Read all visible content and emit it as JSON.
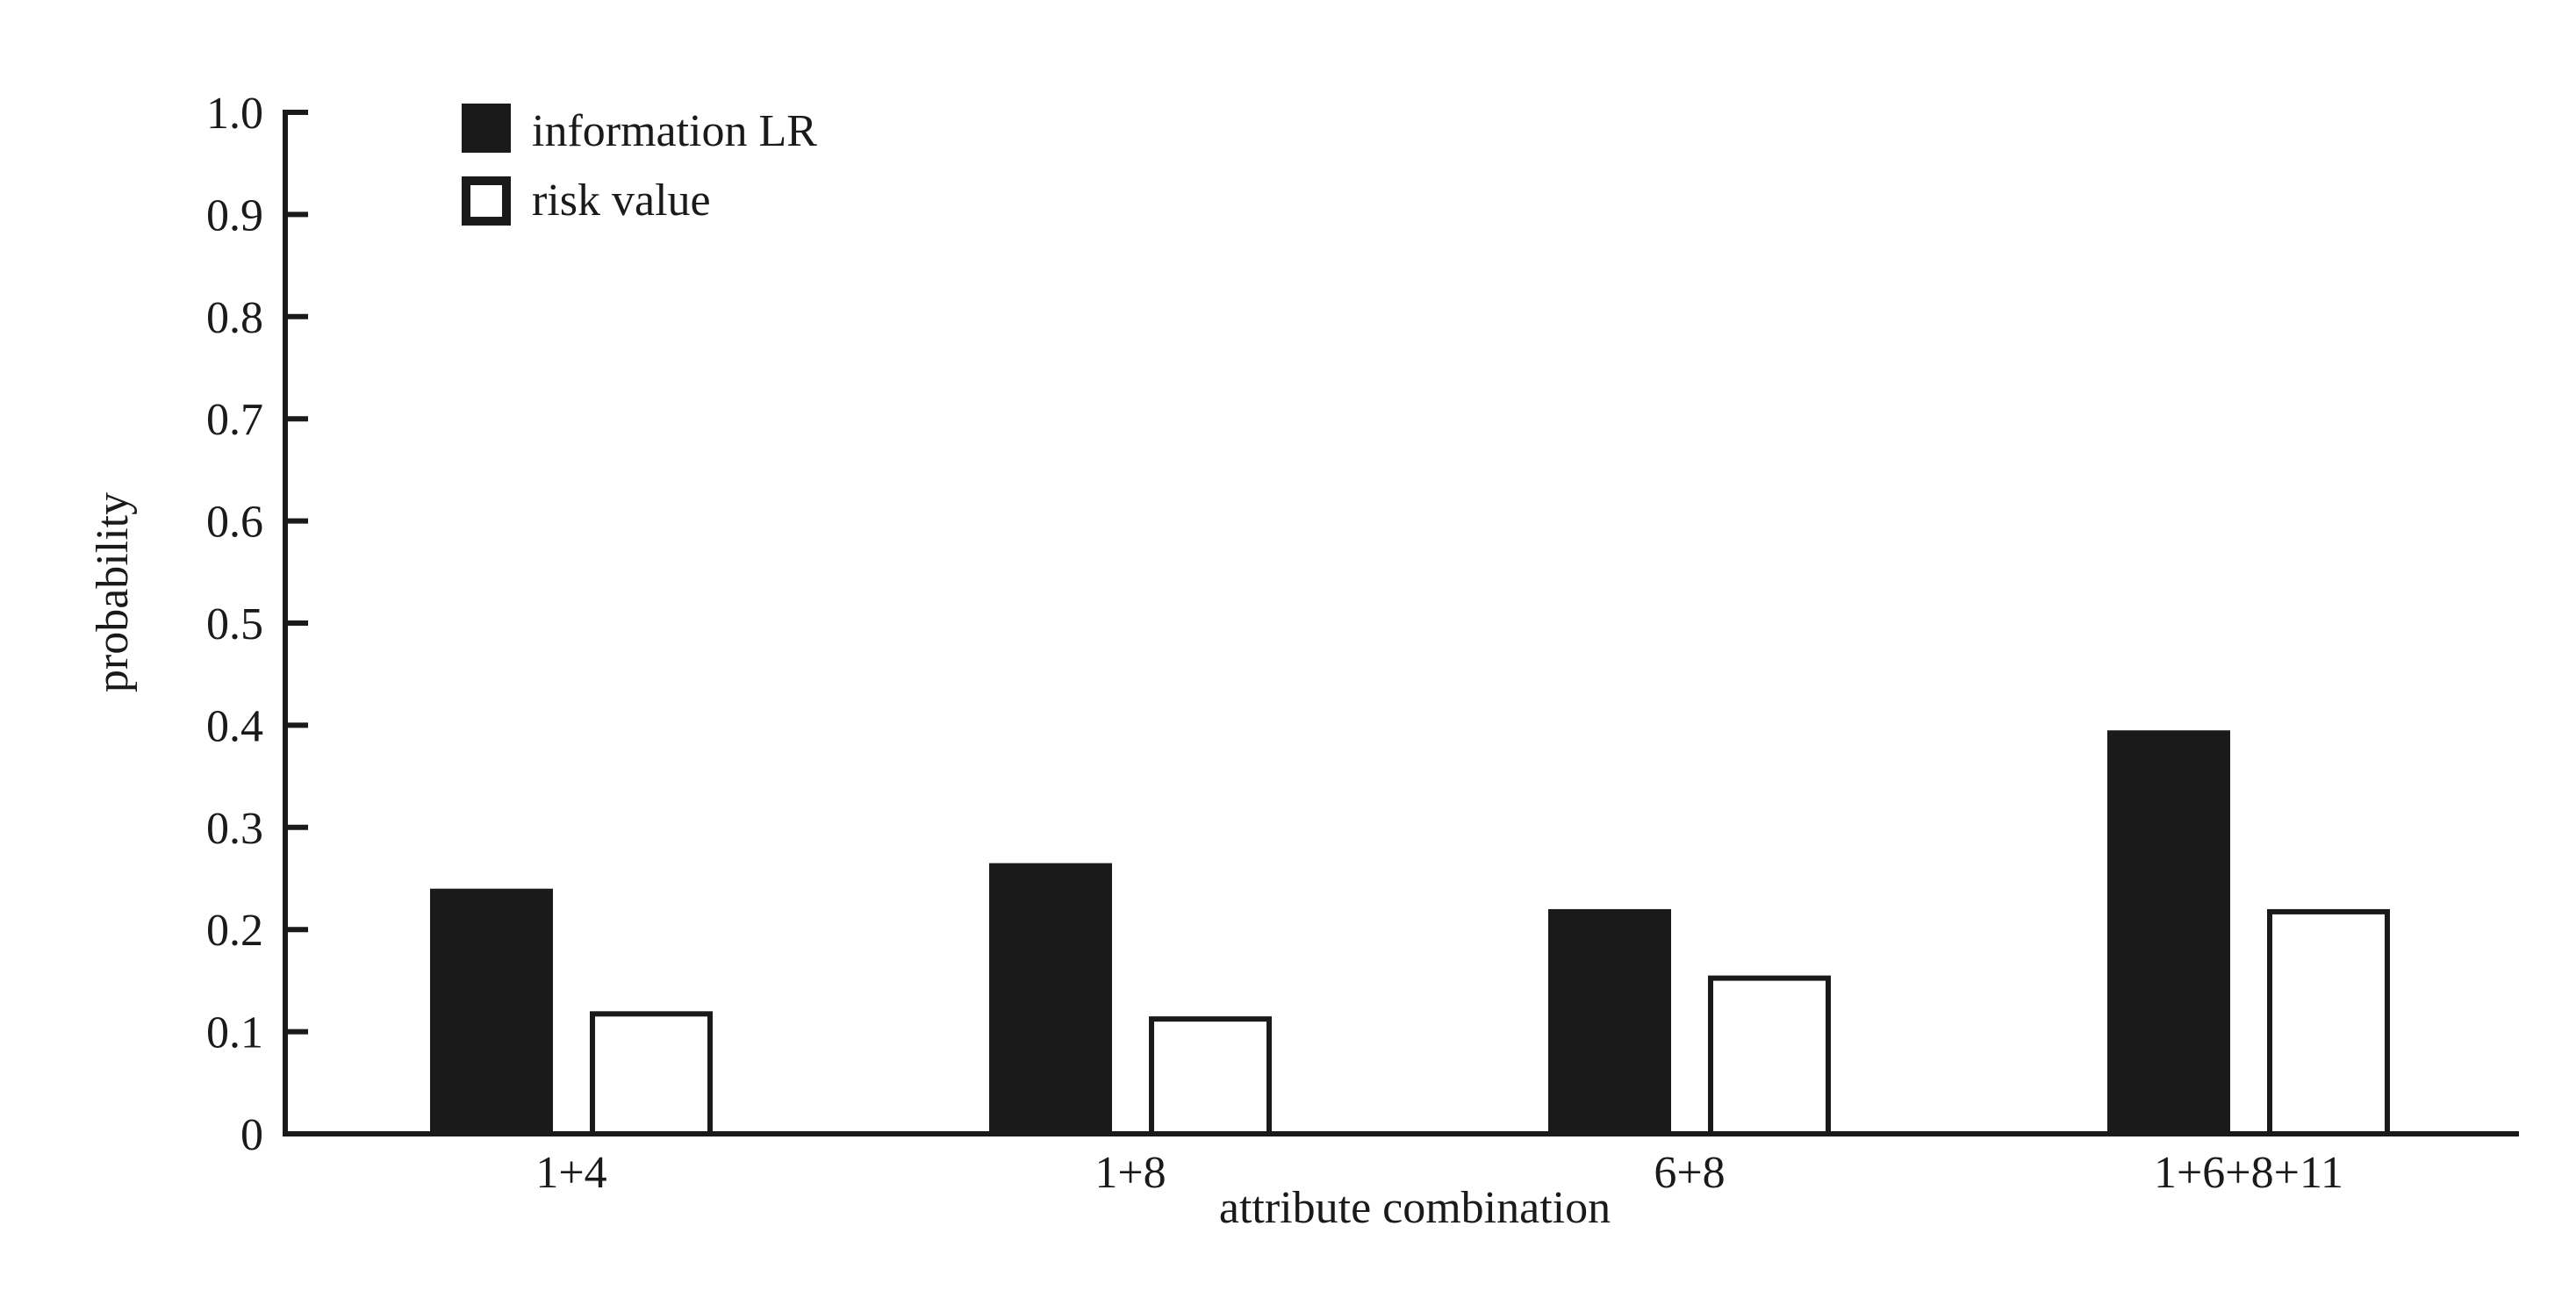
{
  "chart_data": {
    "type": "bar",
    "categories": [
      "1+4",
      "1+8",
      "6+8",
      "1+6+8+11"
    ],
    "series": [
      {
        "name": "information LR",
        "values": [
          0.24,
          0.265,
          0.22,
          0.395
        ],
        "color": "#1a1a1a"
      },
      {
        "name": "risk value",
        "values": [
          0.12,
          0.115,
          0.155,
          0.22
        ],
        "color": "#ffffff"
      }
    ],
    "xlabel": "attribute combination",
    "ylabel": "probability",
    "ylim": [
      0,
      1.0
    ],
    "yticks": [
      "0",
      "0.1",
      "0.2",
      "0.3",
      "0.4",
      "0.5",
      "0.6",
      "0.7",
      "0.8",
      "0.9",
      "1.0"
    ],
    "grid": false,
    "legend_position": "top-left"
  }
}
